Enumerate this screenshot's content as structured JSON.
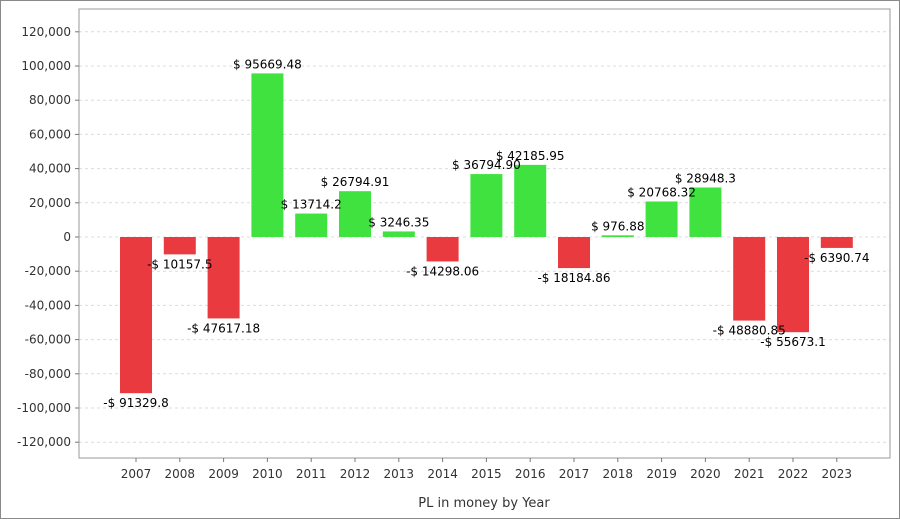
{
  "chart_data": {
    "type": "bar",
    "xlabel": "PL in money by Year",
    "ylabel": "",
    "ylim": [
      -130000,
      130000
    ],
    "yticks": [
      120000,
      100000,
      80000,
      60000,
      40000,
      20000,
      0,
      -20000,
      -40000,
      -60000,
      -80000,
      -100000,
      -120000
    ],
    "ytick_labels": [
      "120,000",
      "100,000",
      "80,000",
      "60,000",
      "40,000",
      "20,000",
      "0",
      "-20,000",
      "-40,000",
      "-60,000",
      "-80,000",
      "-100,000",
      "-120,000"
    ],
    "grid": true,
    "categories": [
      "2007",
      "2008",
      "2009",
      "2010",
      "2011",
      "2012",
      "2013",
      "2014",
      "2015",
      "2016",
      "2017",
      "2018",
      "2019",
      "2020",
      "2021",
      "2022",
      "2023"
    ],
    "values": [
      -91329.8,
      -10157.5,
      -47617.18,
      95669.48,
      13714.2,
      26794.91,
      3246.35,
      -14298.06,
      36794.9,
      42185.95,
      -18184.86,
      976.88,
      20768.32,
      28948.3,
      -48880.85,
      -55673.1,
      -6390.74
    ],
    "data_labels": [
      "-$ 91329.8",
      "-$ 10157.5",
      "-$ 47617.18",
      "$ 95669.48",
      "$ 13714.2",
      "$ 26794.91",
      "$ 3246.35",
      "-$ 14298.06",
      "$ 36794.90",
      "$ 42185.95",
      "-$ 18184.86",
      "$ 976.88",
      "$ 20768.32",
      "$ 28948.3",
      "-$ 48880.85",
      "-$ 55673.1",
      "-$ 6390.74"
    ],
    "colors": {
      "positive": "#3fe23f",
      "negative": "#e83a3f"
    }
  }
}
